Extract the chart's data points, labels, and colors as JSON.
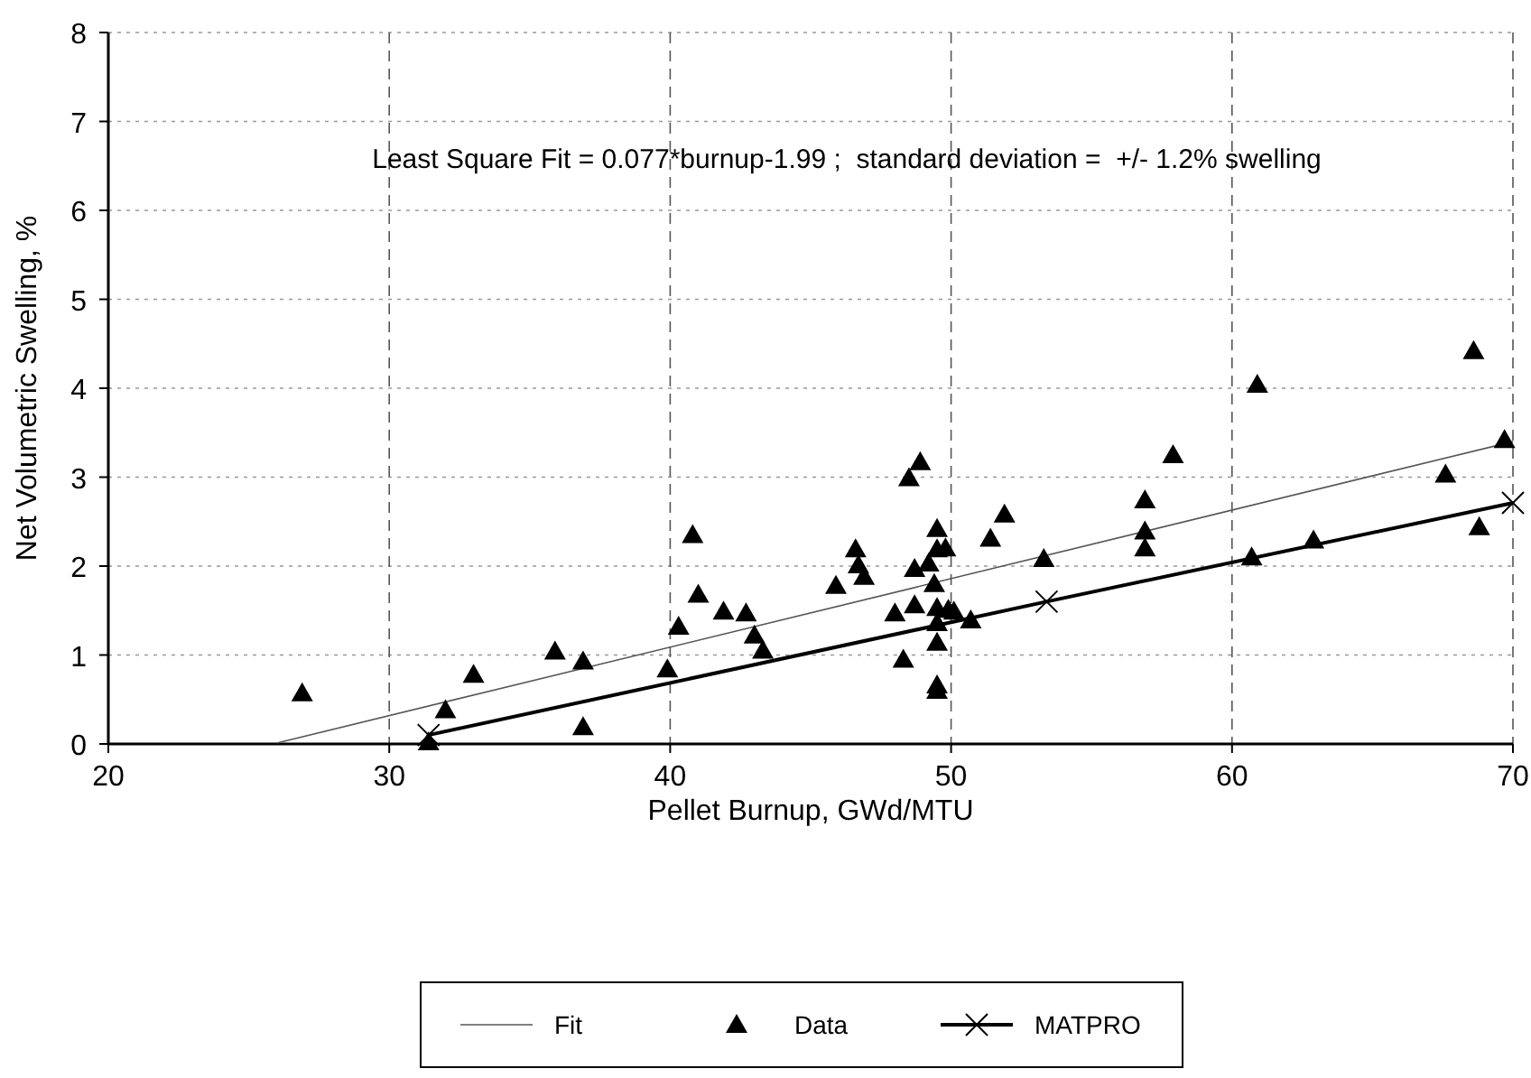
{
  "chart_data": {
    "type": "scatter",
    "xlabel": "Pellet Burnup, GWd/MTU",
    "ylabel": "Net Volumetric Swelling, %",
    "annotations": [
      "Least Square Fit = 0.077*burnup-1.99 ;  standard deviation =  +/- 1.2% swelling"
    ],
    "xlim": [
      20,
      70
    ],
    "xticks": [
      20,
      30,
      40,
      50,
      60,
      70
    ],
    "ylim": [
      0,
      8
    ],
    "yticks": [
      0,
      1,
      2,
      3,
      4,
      5,
      6,
      7,
      8
    ],
    "grid": true,
    "legend": "bottom",
    "series": [
      {
        "name": "Fit",
        "type": "line",
        "color": "#555555",
        "marker": "none",
        "x": [
          26,
          70
        ],
        "values": [
          0.01,
          3.4
        ]
      },
      {
        "name": "Data",
        "color": "#000000",
        "marker": "triangle",
        "x": [
          26.9,
          31.4,
          32.0,
          33.0,
          35.9,
          36.9,
          36.9,
          39.9,
          40.3,
          40.8,
          41.0,
          41.9,
          42.7,
          43.0,
          43.3,
          45.9,
          46.6,
          46.7,
          46.9,
          48.0,
          48.3,
          48.5,
          48.9,
          48.7,
          48.7,
          49.2,
          49.5,
          49.5,
          49.8,
          49.4,
          49.5,
          49.5,
          49.5,
          49.5,
          49.5,
          49.9,
          50.1,
          50.7,
          51.4,
          51.9,
          53.3,
          57.9,
          56.9,
          56.9,
          56.9,
          60.9,
          60.7,
          62.9,
          67.6,
          68.6,
          68.8,
          69.7
        ],
        "values": [
          0.57,
          0.02,
          0.38,
          0.78,
          1.04,
          0.93,
          0.19,
          0.84,
          1.32,
          2.35,
          1.68,
          1.49,
          1.47,
          1.22,
          1.05,
          1.78,
          2.19,
          2.01,
          1.88,
          1.47,
          0.95,
          2.99,
          3.17,
          1.56,
          1.97,
          2.03,
          2.42,
          2.19,
          2.2,
          1.8,
          1.53,
          1.36,
          1.14,
          0.66,
          0.6,
          1.51,
          1.49,
          1.39,
          2.31,
          2.58,
          2.08,
          3.25,
          2.74,
          2.39,
          2.2,
          4.04,
          2.1,
          2.29,
          3.03,
          4.42,
          2.44,
          3.42
        ]
      },
      {
        "name": "MATPRO",
        "type": "line",
        "color": "#000000",
        "marker": "cross",
        "x": [
          31.4,
          53.4,
          70
        ],
        "values": [
          0.1,
          1.6,
          2.71
        ]
      }
    ]
  }
}
